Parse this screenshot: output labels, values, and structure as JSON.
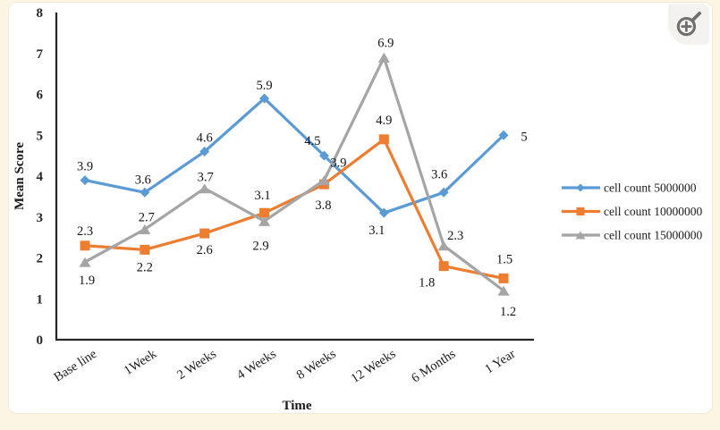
{
  "page": {
    "background_color": "#fcf5e4",
    "card_color": "#ffffff"
  },
  "zoom_button": {
    "icon": "zoom-in-magnifier",
    "color": "#6f6f6f"
  },
  "chart_data": {
    "type": "line",
    "title": "",
    "xlabel": "Time",
    "ylabel": "Mean Score",
    "ylim": [
      0,
      8
    ],
    "ytick_step": 1,
    "yticks": [
      0,
      1,
      2,
      3,
      4,
      5,
      6,
      7,
      8
    ],
    "grid": false,
    "data_labels": true,
    "legend_position": "right",
    "axis_color": "#262626",
    "categories": [
      "Base line",
      "1Week",
      "2 Weeks",
      "4 Weeks",
      "8 Weeks",
      "12 Weeks",
      "6 Months",
      "1 Year"
    ],
    "series": [
      {
        "name": "cell count 5000000",
        "color": "#5B9BD5",
        "marker": "diamond",
        "values": [
          3.9,
          3.6,
          4.6,
          5.9,
          4.5,
          3.1,
          3.6,
          5
        ]
      },
      {
        "name": "cell count 10000000",
        "color": "#ED7D31",
        "marker": "square",
        "values": [
          2.3,
          2.2,
          2.6,
          3.1,
          3.8,
          4.9,
          1.8,
          1.5
        ]
      },
      {
        "name": "cell count 15000000",
        "color": "#A5A5A5",
        "marker": "triangle",
        "values": [
          1.9,
          2.7,
          3.7,
          2.9,
          3.9,
          6.9,
          2.3,
          1.2
        ]
      }
    ]
  }
}
